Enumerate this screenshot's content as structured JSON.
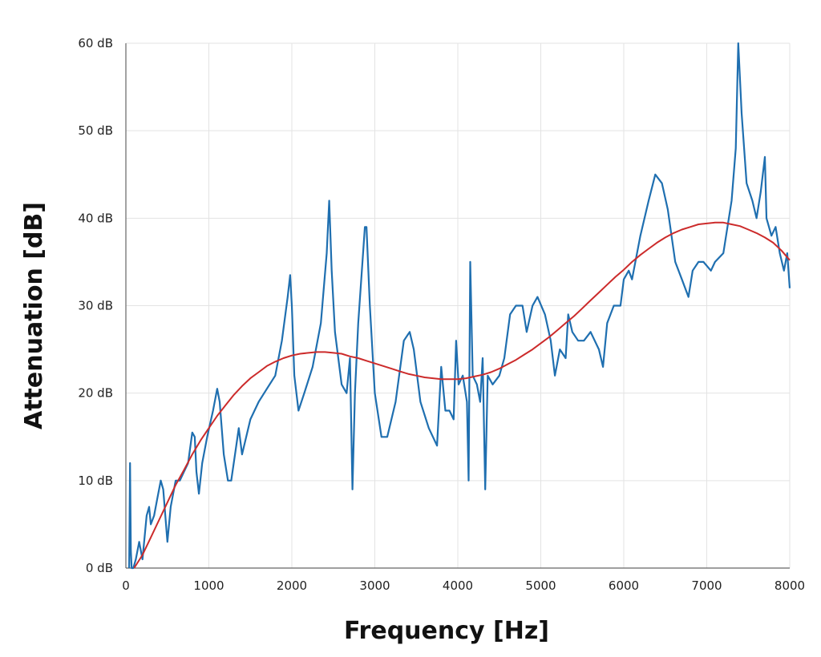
{
  "chart_data": {
    "type": "line",
    "title": "",
    "xlabel": "Frequency [Hz]",
    "ylabel": "Attenuation [dB]",
    "xlim": [
      0,
      8000
    ],
    "ylim": [
      0,
      60
    ],
    "x_ticks": [
      "0",
      "1000",
      "2000",
      "3000",
      "4000",
      "5000",
      "6000",
      "7000",
      "8000"
    ],
    "y_ticks": [
      "0 dB",
      "10 dB",
      "20 dB",
      "30 dB",
      "40 dB",
      "50 dB",
      "60 dB"
    ],
    "grid": true,
    "legend": "none",
    "series": [
      {
        "color": "#1f6fb0",
        "style": "measured",
        "points": [
          [
            40,
            0
          ],
          [
            50,
            12
          ],
          [
            60,
            2
          ],
          [
            70,
            0
          ],
          [
            90,
            0
          ],
          [
            120,
            1
          ],
          [
            160,
            3
          ],
          [
            200,
            1
          ],
          [
            250,
            6
          ],
          [
            280,
            7
          ],
          [
            300,
            5
          ],
          [
            340,
            6
          ],
          [
            380,
            8
          ],
          [
            420,
            10
          ],
          [
            450,
            9
          ],
          [
            500,
            3
          ],
          [
            540,
            7
          ],
          [
            600,
            10
          ],
          [
            650,
            10
          ],
          [
            700,
            11
          ],
          [
            750,
            12
          ],
          [
            800,
            15.5
          ],
          [
            830,
            15
          ],
          [
            850,
            11
          ],
          [
            880,
            8.5
          ],
          [
            920,
            12
          ],
          [
            980,
            15
          ],
          [
            1050,
            18
          ],
          [
            1100,
            20.5
          ],
          [
            1130,
            19
          ],
          [
            1180,
            13
          ],
          [
            1230,
            10
          ],
          [
            1270,
            10
          ],
          [
            1330,
            14
          ],
          [
            1360,
            16
          ],
          [
            1400,
            13
          ],
          [
            1450,
            15
          ],
          [
            1500,
            17
          ],
          [
            1600,
            19
          ],
          [
            1700,
            20.5
          ],
          [
            1800,
            22
          ],
          [
            1880,
            26
          ],
          [
            1950,
            31
          ],
          [
            1980,
            33.5
          ],
          [
            2000,
            30
          ],
          [
            2030,
            22
          ],
          [
            2080,
            18
          ],
          [
            2150,
            20
          ],
          [
            2250,
            23
          ],
          [
            2350,
            28
          ],
          [
            2420,
            36
          ],
          [
            2450,
            42
          ],
          [
            2480,
            34
          ],
          [
            2520,
            27
          ],
          [
            2600,
            21
          ],
          [
            2660,
            20
          ],
          [
            2700,
            24
          ],
          [
            2730,
            9
          ],
          [
            2760,
            20
          ],
          [
            2800,
            28
          ],
          [
            2880,
            39
          ],
          [
            2900,
            39
          ],
          [
            2940,
            30
          ],
          [
            3000,
            20
          ],
          [
            3080,
            15
          ],
          [
            3150,
            15
          ],
          [
            3250,
            19
          ],
          [
            3350,
            26
          ],
          [
            3420,
            27
          ],
          [
            3470,
            25
          ],
          [
            3550,
            19
          ],
          [
            3650,
            16
          ],
          [
            3750,
            14
          ],
          [
            3800,
            23
          ],
          [
            3850,
            18
          ],
          [
            3900,
            18
          ],
          [
            3950,
            17
          ],
          [
            3980,
            26
          ],
          [
            4010,
            21
          ],
          [
            4060,
            22
          ],
          [
            4110,
            19
          ],
          [
            4130,
            10
          ],
          [
            4150,
            35
          ],
          [
            4180,
            22
          ],
          [
            4230,
            21
          ],
          [
            4270,
            19
          ],
          [
            4300,
            24
          ],
          [
            4330,
            9
          ],
          [
            4360,
            22
          ],
          [
            4420,
            21
          ],
          [
            4500,
            22
          ],
          [
            4560,
            24
          ],
          [
            4630,
            29
          ],
          [
            4700,
            30
          ],
          [
            4780,
            30
          ],
          [
            4830,
            27
          ],
          [
            4900,
            30
          ],
          [
            4960,
            31
          ],
          [
            5050,
            29
          ],
          [
            5120,
            26
          ],
          [
            5170,
            22
          ],
          [
            5230,
            25
          ],
          [
            5300,
            24
          ],
          [
            5330,
            29
          ],
          [
            5380,
            27
          ],
          [
            5450,
            26
          ],
          [
            5520,
            26
          ],
          [
            5600,
            27
          ],
          [
            5700,
            25
          ],
          [
            5750,
            23
          ],
          [
            5800,
            28
          ],
          [
            5880,
            30
          ],
          [
            5960,
            30
          ],
          [
            6000,
            33
          ],
          [
            6060,
            34
          ],
          [
            6100,
            33
          ],
          [
            6200,
            38
          ],
          [
            6300,
            42
          ],
          [
            6380,
            45
          ],
          [
            6460,
            44
          ],
          [
            6530,
            41
          ],
          [
            6620,
            35
          ],
          [
            6700,
            33
          ],
          [
            6780,
            31
          ],
          [
            6830,
            34
          ],
          [
            6900,
            35
          ],
          [
            6960,
            35
          ],
          [
            7050,
            34
          ],
          [
            7100,
            35
          ],
          [
            7200,
            36
          ],
          [
            7300,
            42
          ],
          [
            7350,
            48
          ],
          [
            7380,
            60
          ],
          [
            7420,
            52
          ],
          [
            7480,
            44
          ],
          [
            7550,
            42
          ],
          [
            7600,
            40
          ],
          [
            7650,
            43
          ],
          [
            7700,
            47
          ],
          [
            7720,
            40
          ],
          [
            7780,
            38
          ],
          [
            7830,
            39
          ],
          [
            7880,
            36
          ],
          [
            7930,
            34
          ],
          [
            7970,
            36
          ],
          [
            8000,
            32
          ]
        ]
      },
      {
        "color": "#cc2b2b",
        "style": "fit",
        "points": [
          [
            100,
            0
          ],
          [
            200,
            1.5
          ],
          [
            300,
            3.5
          ],
          [
            400,
            5.5
          ],
          [
            500,
            7.5
          ],
          [
            600,
            9.5
          ],
          [
            700,
            11.2
          ],
          [
            800,
            13
          ],
          [
            900,
            14.6
          ],
          [
            1000,
            16
          ],
          [
            1100,
            17.4
          ],
          [
            1200,
            18.6
          ],
          [
            1300,
            19.8
          ],
          [
            1400,
            20.8
          ],
          [
            1500,
            21.7
          ],
          [
            1600,
            22.4
          ],
          [
            1700,
            23.1
          ],
          [
            1800,
            23.6
          ],
          [
            1900,
            24
          ],
          [
            2000,
            24.3
          ],
          [
            2100,
            24.5
          ],
          [
            2200,
            24.6
          ],
          [
            2300,
            24.7
          ],
          [
            2400,
            24.7
          ],
          [
            2500,
            24.6
          ],
          [
            2600,
            24.5
          ],
          [
            2700,
            24.2
          ],
          [
            2800,
            24
          ],
          [
            2900,
            23.7
          ],
          [
            3000,
            23.4
          ],
          [
            3100,
            23.1
          ],
          [
            3200,
            22.8
          ],
          [
            3300,
            22.5
          ],
          [
            3400,
            22.2
          ],
          [
            3500,
            22
          ],
          [
            3600,
            21.8
          ],
          [
            3700,
            21.7
          ],
          [
            3800,
            21.6
          ],
          [
            3900,
            21.6
          ],
          [
            4000,
            21.6
          ],
          [
            4100,
            21.7
          ],
          [
            4200,
            21.9
          ],
          [
            4300,
            22.1
          ],
          [
            4400,
            22.4
          ],
          [
            4500,
            22.8
          ],
          [
            4600,
            23.3
          ],
          [
            4700,
            23.8
          ],
          [
            4800,
            24.4
          ],
          [
            4900,
            25
          ],
          [
            5000,
            25.7
          ],
          [
            5100,
            26.4
          ],
          [
            5200,
            27.2
          ],
          [
            5300,
            28
          ],
          [
            5400,
            28.8
          ],
          [
            5500,
            29.7
          ],
          [
            5600,
            30.6
          ],
          [
            5700,
            31.5
          ],
          [
            5800,
            32.4
          ],
          [
            5900,
            33.3
          ],
          [
            6000,
            34.1
          ],
          [
            6100,
            35
          ],
          [
            6200,
            35.8
          ],
          [
            6300,
            36.5
          ],
          [
            6400,
            37.2
          ],
          [
            6500,
            37.8
          ],
          [
            6600,
            38.3
          ],
          [
            6700,
            38.7
          ],
          [
            6800,
            39
          ],
          [
            6900,
            39.3
          ],
          [
            7000,
            39.4
          ],
          [
            7100,
            39.5
          ],
          [
            7200,
            39.5
          ],
          [
            7300,
            39.3
          ],
          [
            7400,
            39.1
          ],
          [
            7500,
            38.7
          ],
          [
            7600,
            38.3
          ],
          [
            7700,
            37.8
          ],
          [
            7800,
            37.2
          ],
          [
            7900,
            36.3
          ],
          [
            8000,
            35.2
          ]
        ]
      }
    ]
  }
}
